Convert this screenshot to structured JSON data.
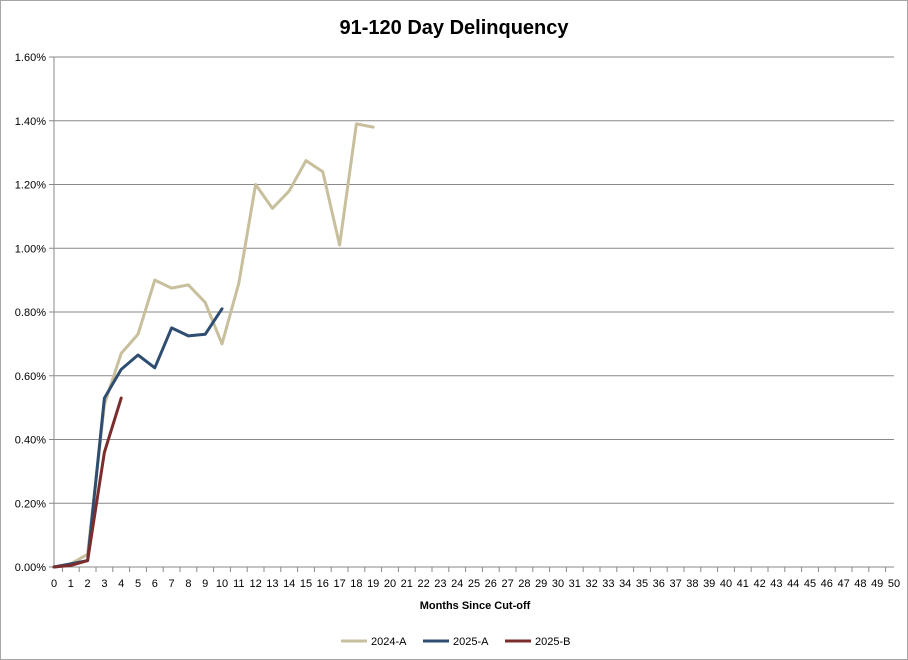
{
  "chart_data": {
    "type": "line",
    "title": "91-120 Day Delinquency",
    "xlabel": "Months Since Cut-off",
    "ylabel": "",
    "x_ticks": [
      0,
      1,
      2,
      3,
      4,
      5,
      6,
      7,
      8,
      9,
      10,
      11,
      12,
      13,
      14,
      15,
      16,
      17,
      18,
      19,
      20,
      21,
      22,
      23,
      24,
      25,
      26,
      27,
      28,
      29,
      30,
      31,
      32,
      33,
      34,
      35,
      36,
      37,
      38,
      39,
      40,
      41,
      42,
      43,
      44,
      45,
      46,
      47,
      48,
      49,
      50
    ],
    "xlim": [
      0,
      50
    ],
    "y_ticks": [
      0,
      0.002,
      0.004,
      0.006,
      0.008,
      0.01,
      0.012,
      0.014,
      0.016
    ],
    "y_tick_labels": [
      "0.00%",
      "0.20%",
      "0.40%",
      "0.60%",
      "0.80%",
      "1.00%",
      "1.20%",
      "1.40%",
      "1.60%"
    ],
    "ylim": [
      0,
      0.016
    ],
    "grid": "horizontal",
    "legend_position": "bottom",
    "series": [
      {
        "name": "2024-A",
        "color": "#c8bf9c",
        "x": [
          0,
          1,
          2,
          3,
          4,
          5,
          6,
          7,
          8,
          9,
          10,
          11,
          12,
          13,
          14,
          15,
          16,
          17,
          18,
          19
        ],
        "values": [
          0,
          0.0001,
          0.0004,
          0.0051,
          0.0067,
          0.0073,
          0.009,
          0.00875,
          0.00885,
          0.0083,
          0.007,
          0.0089,
          0.012,
          0.01125,
          0.0118,
          0.01275,
          0.0124,
          0.0101,
          0.0139,
          0.0138
        ]
      },
      {
        "name": "2025-A",
        "color": "#2e4d70",
        "x": [
          0,
          1,
          2,
          3,
          4,
          5,
          6,
          7,
          8,
          9,
          10
        ],
        "values": [
          0,
          0.0001,
          0.0002,
          0.0053,
          0.0062,
          0.00665,
          0.00625,
          0.0075,
          0.00725,
          0.0073,
          0.0081
        ]
      },
      {
        "name": "2025-B",
        "color": "#7b2d2d",
        "x": [
          0,
          1,
          2,
          3,
          4
        ],
        "values": [
          0,
          5e-05,
          0.0002,
          0.0036,
          0.0053
        ]
      }
    ]
  }
}
